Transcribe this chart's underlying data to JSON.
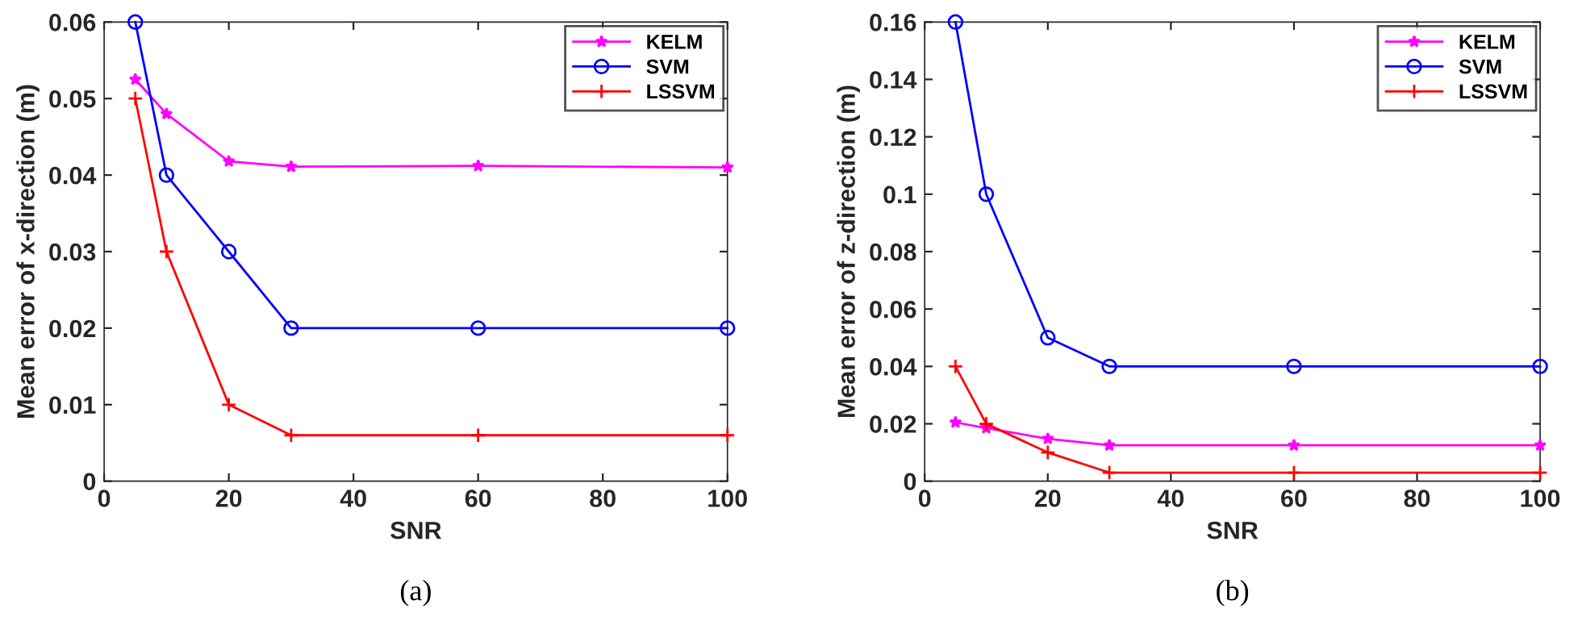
{
  "chart_data": [
    {
      "type": "line",
      "xlabel": "SNR",
      "ylabel": "Mean error of x-direction (m)",
      "x": [
        5,
        10,
        20,
        30,
        60,
        100
      ],
      "xlim": [
        0,
        100
      ],
      "xticks": [
        0,
        20,
        40,
        60,
        80,
        100
      ],
      "ylim": [
        0,
        0.06
      ],
      "yticks": [
        0,
        0.01,
        0.02,
        0.03,
        0.04,
        0.05,
        0.06
      ],
      "legend": "top right",
      "grid": false,
      "annotations": [
        "(a)"
      ],
      "series": [
        {
          "name": "KELM",
          "color": "#ff00ff",
          "marker": "star",
          "values": [
            0.0525,
            0.048,
            0.0418,
            0.0411,
            0.0412,
            0.041
          ]
        },
        {
          "name": "SVM",
          "color": "#0000ff",
          "marker": "circle",
          "values": [
            0.06,
            0.04,
            0.03,
            0.02,
            0.02,
            0.02
          ]
        },
        {
          "name": "LSSVM",
          "color": "#ff0000",
          "marker": "cross",
          "values": [
            0.05,
            0.03,
            0.01,
            0.006,
            0.006,
            0.006
          ]
        }
      ]
    },
    {
      "type": "line",
      "xlabel": "SNR",
      "ylabel": "Mean error of z-direction (m)",
      "x": [
        5,
        10,
        20,
        30,
        60,
        100
      ],
      "xlim": [
        0,
        100
      ],
      "xticks": [
        0,
        20,
        40,
        60,
        80,
        100
      ],
      "ylim": [
        0,
        0.16
      ],
      "yticks": [
        0,
        0.02,
        0.04,
        0.06,
        0.08,
        0.1,
        0.12,
        0.14,
        0.16
      ],
      "legend": "top right",
      "grid": false,
      "annotations": [
        "(b)"
      ],
      "series": [
        {
          "name": "KELM",
          "color": "#ff00ff",
          "marker": "star",
          "values": [
            0.0205,
            0.0185,
            0.0148,
            0.0125,
            0.0125,
            0.0125
          ]
        },
        {
          "name": "SVM",
          "color": "#0000ff",
          "marker": "circle",
          "values": [
            0.16,
            0.1,
            0.05,
            0.04,
            0.04,
            0.04
          ]
        },
        {
          "name": "LSSVM",
          "color": "#ff0000",
          "marker": "cross",
          "values": [
            0.04,
            0.02,
            0.01,
            0.003,
            0.003,
            0.003
          ]
        }
      ]
    }
  ]
}
